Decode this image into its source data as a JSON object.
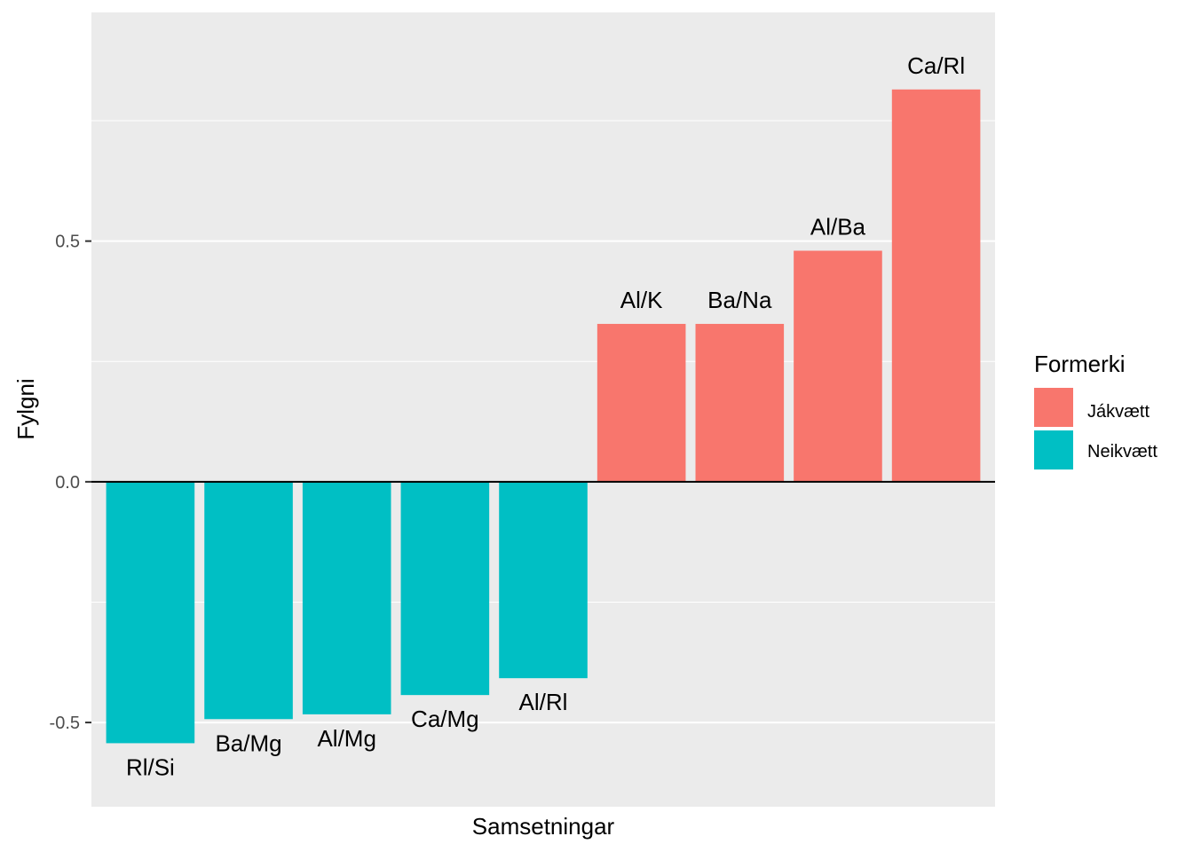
{
  "chart_data": {
    "type": "bar",
    "xlabel": "Samsetningar",
    "ylabel": "Fylgni",
    "categories": [
      "Rl/Si",
      "Ba/Mg",
      "Al/Mg",
      "Ca/Mg",
      "Al/Rl",
      "Al/K",
      "Ba/Na",
      "Al/Ba",
      "Ca/Rl"
    ],
    "values": [
      -0.543,
      -0.493,
      -0.483,
      -0.443,
      -0.408,
      0.328,
      0.328,
      0.48,
      0.815
    ],
    "groups": [
      "Neikvætt",
      "Neikvætt",
      "Neikvætt",
      "Neikvætt",
      "Neikvætt",
      "Jákvætt",
      "Jákvætt",
      "Jákvætt",
      "Jákvætt"
    ],
    "ylim": [
      -0.675,
      0.975
    ],
    "y_ticks": [
      -0.5,
      0.0,
      0.5
    ],
    "y_tick_labels": [
      "-0.5",
      "0.0",
      "0.5"
    ],
    "grid": true,
    "legend": {
      "title": "Formerki",
      "position": "right",
      "entries": [
        {
          "label": "Jákvætt",
          "color": "#F8766D"
        },
        {
          "label": "Neikvætt",
          "color": "#00BFC4"
        }
      ]
    }
  }
}
